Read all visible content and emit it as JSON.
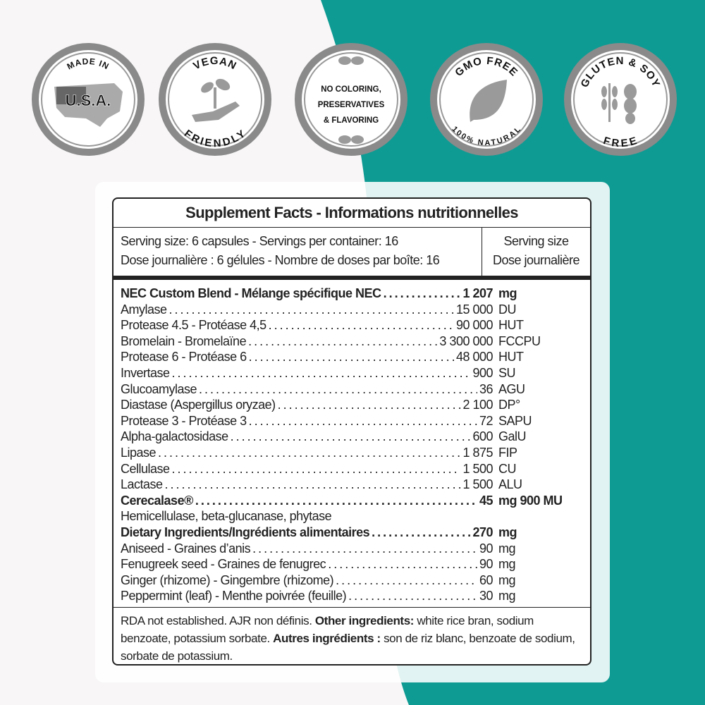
{
  "colors": {
    "teal": "#0e9b93",
    "badge_ring": "#8a8a8a",
    "text": "#222222"
  },
  "badges": [
    {
      "top": "MADE IN",
      "center": "U.S.A.",
      "bottom": "",
      "icon": "usa-flag-map-icon"
    },
    {
      "top": "VEGAN",
      "center": "",
      "bottom": "FRIENDLY",
      "icon": "plant-in-hand-icon"
    },
    {
      "top": "",
      "center_lines": [
        "NO COLORING,",
        "PRESERVATIVES",
        "& FLAVORING"
      ],
      "bottom": "",
      "icon": "leaves-icon"
    },
    {
      "top": "GMO FREE",
      "center": "",
      "bottom": "100% NATURAL",
      "icon": "leaf-icon"
    },
    {
      "top": "GLUTEN & SOY",
      "center": "",
      "bottom": "FREE",
      "icon": "wheat-soy-icon"
    }
  ],
  "facts": {
    "title": "Supplement Facts - Informations nutritionnelles",
    "serving_line1": "Serving size: 6 capsules - Servings per container: 16",
    "serving_line2": "Dose journalière : 6 gélules - Nombre de doses par boîte: 16",
    "col_header1": "Serving size",
    "col_header2": "Dose journalière",
    "blend": {
      "name": "NEC Custom Blend - Mélange spécifique NEC",
      "amount": "1 207",
      "unit": "mg"
    },
    "blend_items": [
      {
        "name": "Amylase",
        "amount": "15 000",
        "unit": "DU"
      },
      {
        "name": "Protease 4.5 - Protéase 4,5",
        "amount": "90 000",
        "unit": "HUT"
      },
      {
        "name": "Bromelain - Bromelaïne",
        "amount": "3 300 000",
        "unit": "FCCPU"
      },
      {
        "name": "Protease 6 - Protéase 6",
        "amount": "48 000",
        "unit": "HUT"
      },
      {
        "name": "Invertase",
        "amount": "900",
        "unit": "SU"
      },
      {
        "name": "Glucoamylase",
        "amount": "36",
        "unit": "AGU"
      },
      {
        "name": "Diastase (Aspergillus oryzae)",
        "amount": "2 100",
        "unit": "DP°"
      },
      {
        "name": "Protease 3 - Protéase 3",
        "amount": "72",
        "unit": "SAPU"
      },
      {
        "name": "Alpha-galactosidase",
        "amount": "600",
        "unit": "GalU"
      },
      {
        "name": "Lipase",
        "amount": "1 875",
        "unit": "FIP"
      },
      {
        "name": "Cellulase",
        "amount": "1 500",
        "unit": "CU"
      },
      {
        "name": "Lactase",
        "amount": "1 500",
        "unit": "ALU"
      }
    ],
    "cerecalase": {
      "name": "Cerecalase®",
      "amount": "45",
      "unit": "mg 900 MU",
      "sub": "Hemicellulase, beta-glucanase, phytase"
    },
    "dietary": {
      "name": "Dietary Ingredients/Ingrédients alimentaires",
      "amount": "270",
      "unit": "mg"
    },
    "dietary_items": [
      {
        "name": "Aniseed - Graines d’anis",
        "amount": "90",
        "unit": "mg"
      },
      {
        "name": "Fenugreek seed - Graines de fenugrec",
        "amount": "90",
        "unit": "mg"
      },
      {
        "name": "Ginger (rhizome) - Gingembre (rhizome)",
        "amount": "60",
        "unit": "mg"
      },
      {
        "name": "Peppermint (leaf) - Menthe poivrée (feuille)",
        "amount": "30",
        "unit": "mg"
      }
    ],
    "footer": {
      "t1": "RDA not established. AJR non définis. ",
      "b1": "Other ingredients:",
      "t2": " white rice bran, sodium benzoate, potassium sorbate. ",
      "b2": "Autres ingrédients :",
      "t3": " son de riz blanc, benzoate de sodium, sorbate de potassium."
    }
  }
}
